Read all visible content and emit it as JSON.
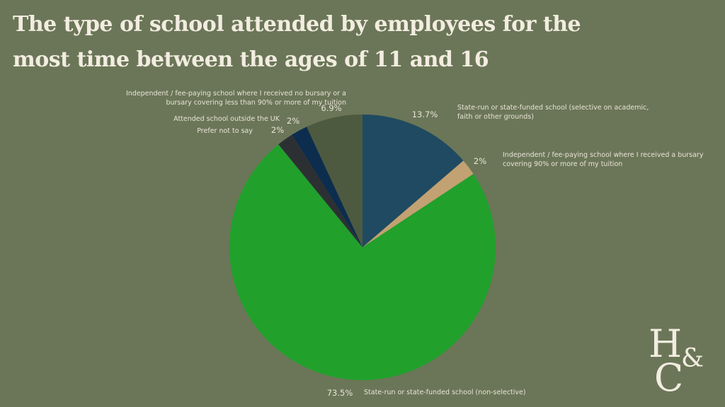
{
  "header": {
    "title": "The type of school attended by employees for the most time between the ages of 11 and 16"
  },
  "logo": {
    "h": "H",
    "amp": "&",
    "c": "C"
  },
  "chart_data": {
    "type": "pie",
    "title": "The type of school attended by employees for the most time between the ages of 11 and 16",
    "start_angle": "12 o'clock",
    "direction": "clockwise",
    "slices": [
      {
        "label": [
          "State-run or state-funded school (selective on academic,",
          "faith or other grounds)"
        ],
        "value": 13.7,
        "value_label": "13.7%",
        "color": "#1f4a61"
      },
      {
        "label": [
          "Independent / fee-paying school where I received a bursary",
          "covering 90% or more of my tuition"
        ],
        "value": 2,
        "value_label": "2%",
        "color": "#c2a172"
      },
      {
        "label": [
          "State-run or state-funded school (non-selective)"
        ],
        "value": 73.5,
        "value_label": "73.5%",
        "color": "#21a02c"
      },
      {
        "label": [
          "Prefer not to say"
        ],
        "value": 2,
        "value_label": "2%",
        "color": "#2d3033"
      },
      {
        "label": [
          "Attended school outside the UK"
        ],
        "value": 2,
        "value_label": "2%",
        "color": "#0c2d4d"
      },
      {
        "label": [
          "Independent / fee-paying school where I received no bursary or a",
          "bursary covering less than 90% or more of my tuition"
        ],
        "value": 6.9,
        "value_label": "6.9%",
        "color": "#4d5a40"
      }
    ]
  }
}
